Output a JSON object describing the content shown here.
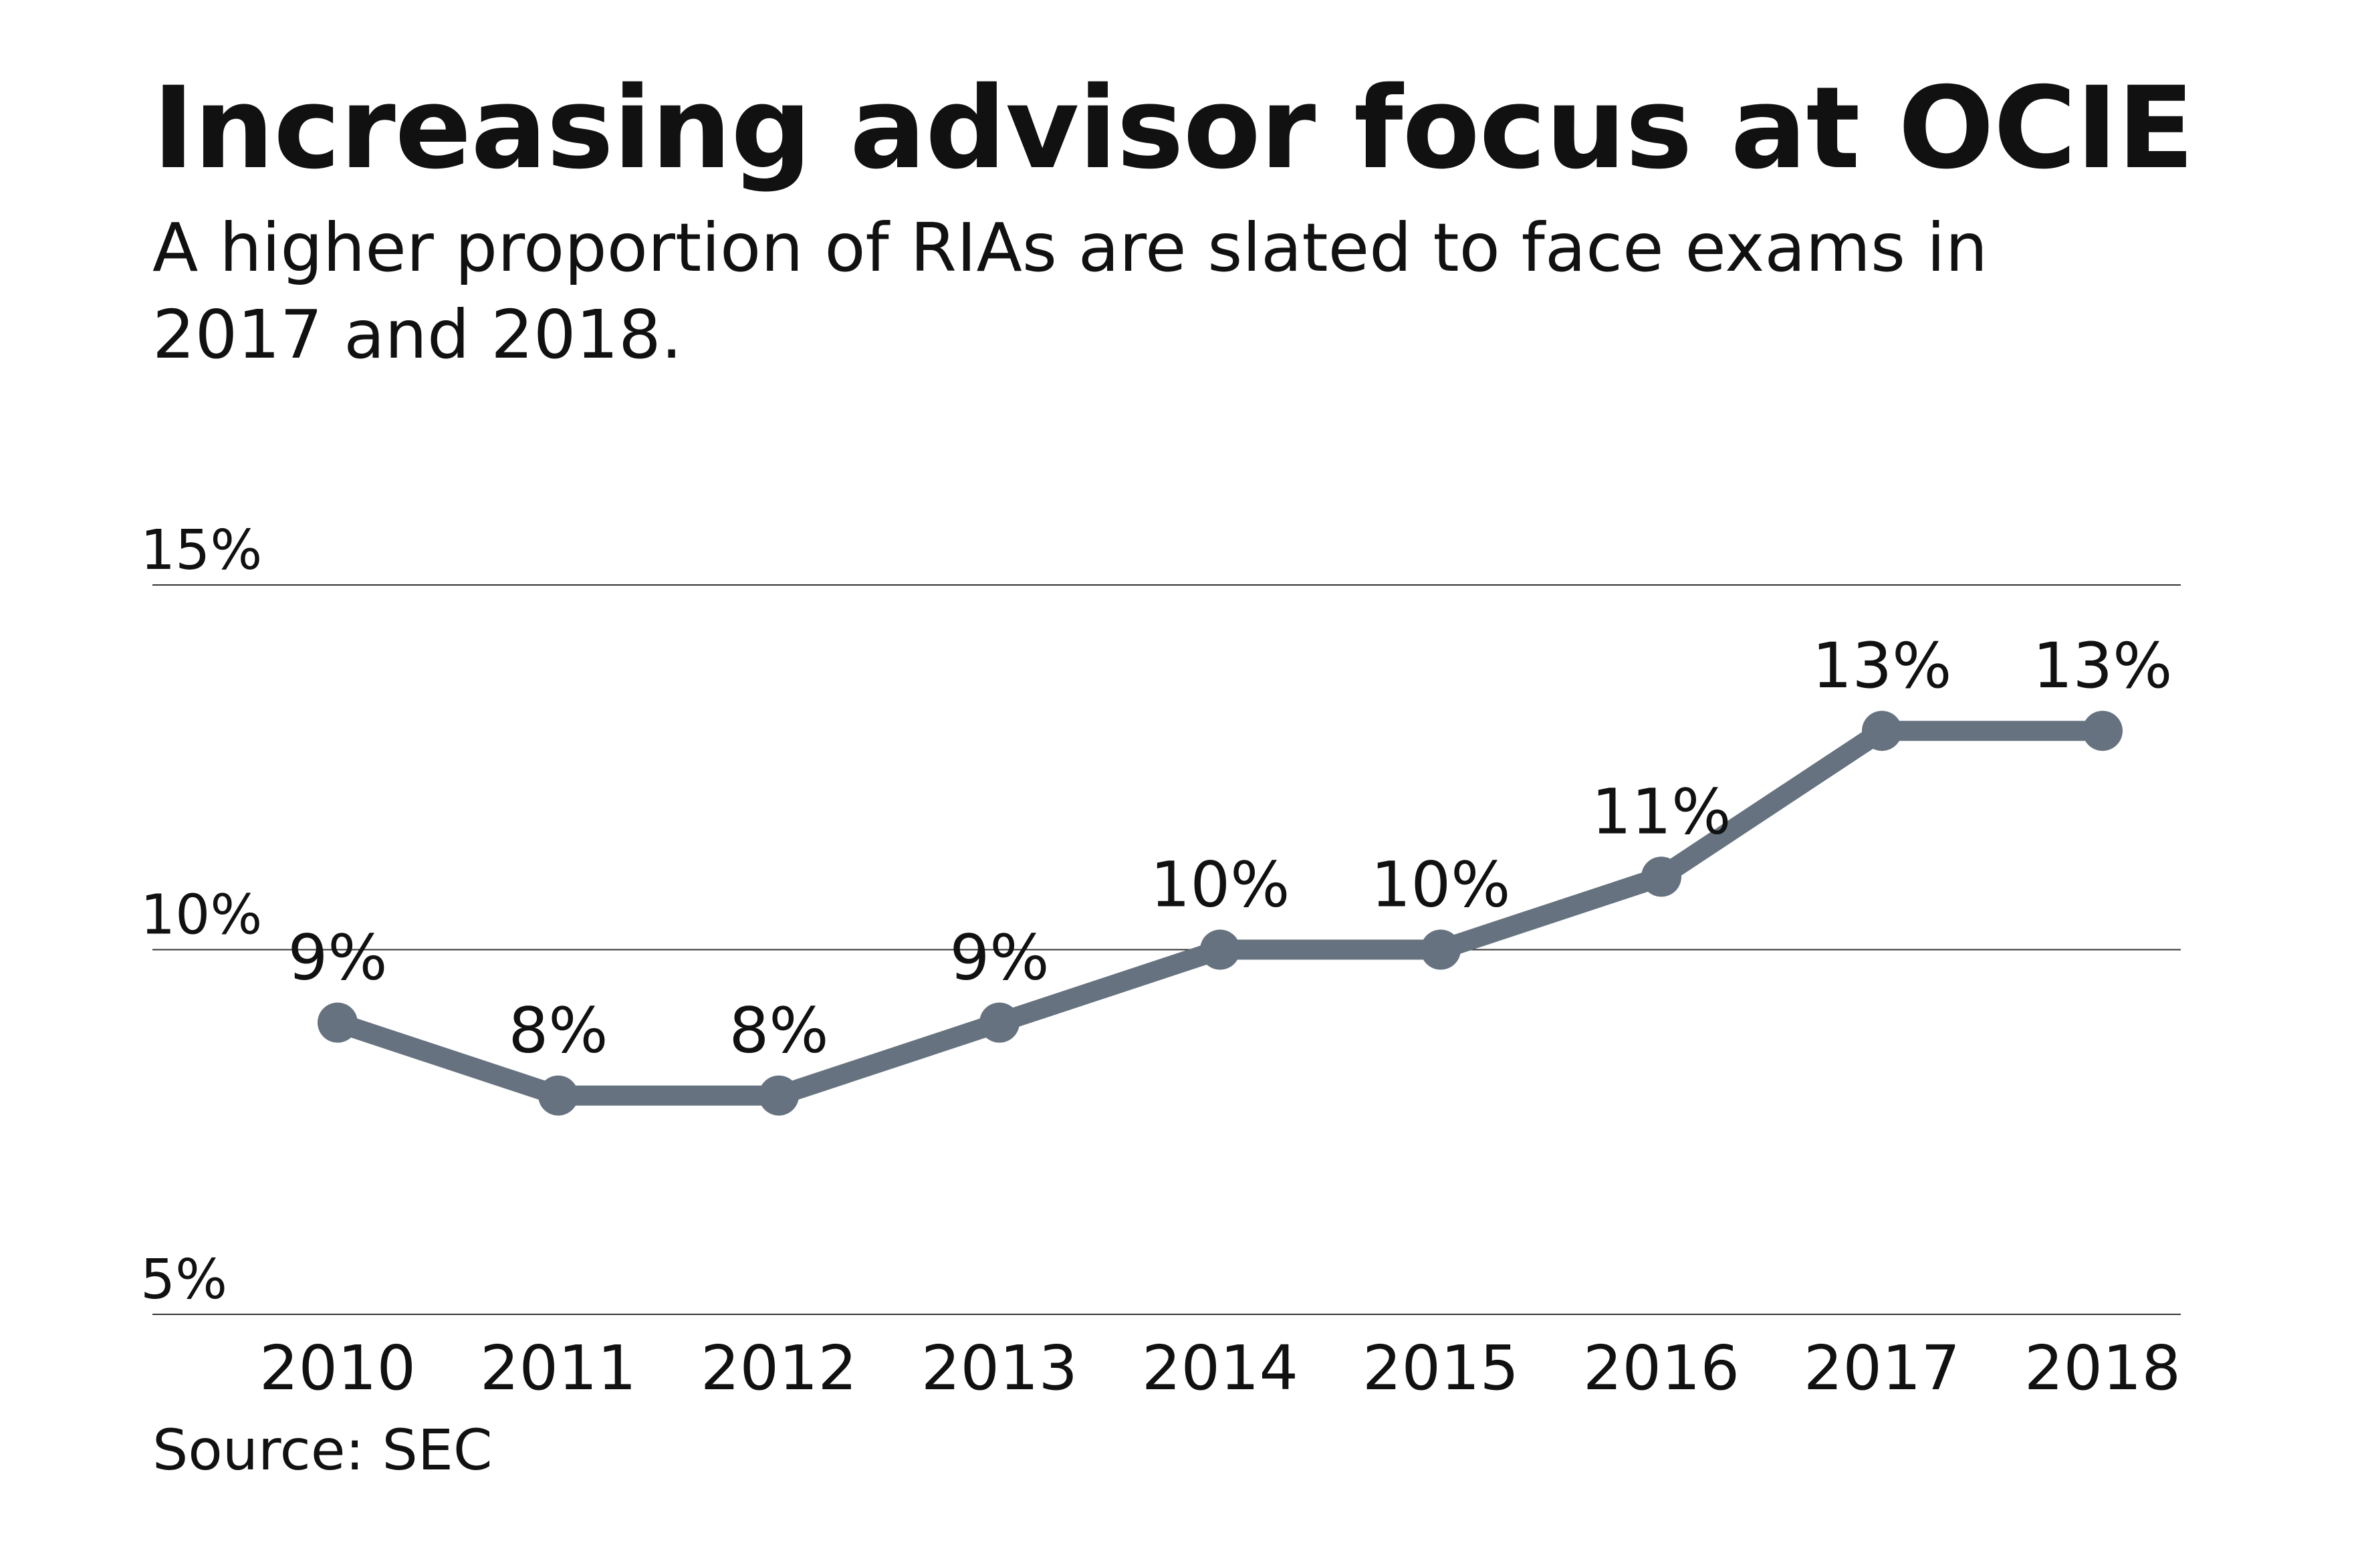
{
  "header": {
    "title": "Increasing advisor focus at OCIE",
    "subtitle": "A higher proportion of RIAs are slated to face exams in 2017 and 2018."
  },
  "footer": {
    "source": "Source: SEC"
  },
  "chart_data": {
    "type": "line",
    "title": "Increasing advisor focus at OCIE",
    "subtitle": "A higher proportion of RIAs are slated to face exams in 2017 and 2018.",
    "categories": [
      "2010",
      "2011",
      "2012",
      "2013",
      "2014",
      "2015",
      "2016",
      "2017",
      "2018"
    ],
    "series": [
      {
        "values": [
          9,
          8,
          8,
          9,
          10,
          10,
          11,
          13,
          13
        ],
        "labels": [
          "9%",
          "8%",
          "8%",
          "9%",
          "10%",
          "10%",
          "11%",
          "13%",
          "13%"
        ],
        "color": "#66727f"
      }
    ],
    "y_ticks": [
      5,
      10,
      15
    ],
    "y_tick_labels": [
      "5%",
      "10%",
      "15%"
    ],
    "ylim": [
      5,
      15
    ],
    "xlabel": "",
    "ylabel": "",
    "grid": true,
    "gridline_color": "#333333",
    "source": "Source: SEC"
  }
}
